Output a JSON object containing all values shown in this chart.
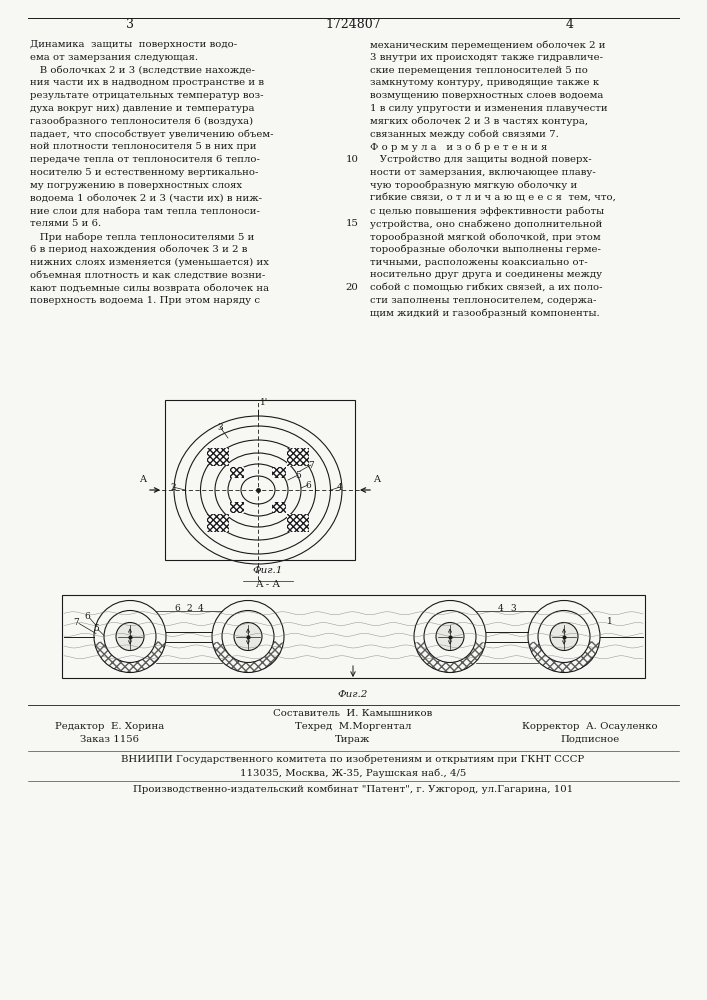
{
  "page_number_left": "3",
  "patent_number": "1724807",
  "page_number_right": "4",
  "background_color": "#f7f7f3",
  "text_color": "#1a1a1a",
  "left_col_lines": [
    "Динамика  защиты  поверхности водо-",
    "ема от замерзания следующая.",
    "   В оболочках 2 и 3 (вследствие нахожде-",
    "ния части их в надводном пространстве и в",
    "результате отрицательных температур воз-",
    "духа вокруг них) давление и температура",
    "газообразного теплоносителя 6 (воздуха)",
    "падает, что способствует увеличению объем-",
    "ной плотности теплоносителя 5 в них при",
    "передаче тепла от теплоносителя 6 тепло-",
    "носителю 5 и естественному вертикально-",
    "му погружению в поверхностных слоях",
    "водоема 1 оболочек 2 и 3 (части их) в ниж-",
    "ние слои для набора там тепла теплоноси-",
    "телями 5 и 6.",
    "   При наборе тепла теплоносителями 5 и",
    "6 в период нахождения оболочек 3 и 2 в",
    "нижних слоях изменяется (уменьшается) их",
    "объемная плотность и как следствие возни-",
    "кают подъемные силы возврата оболочек на",
    "поверхность водоема 1. При этом наряду с"
  ],
  "right_col_lines": [
    "механическим перемещением оболочек 2 и",
    "3 внутри их происходят также гидравличе-",
    "ские перемещения теплоносителей 5 по",
    "замкнутому контуру, приводящие также к",
    "возмущению поверхностных слоев водоема",
    "1 в силу упругости и изменения плавучести",
    "мягких оболочек 2 и 3 в частях контура,",
    "связанных между собой связями 7.",
    "Ф о р м у л а   и з о б р е т е н и я",
    "   Устройство для защиты водной поверх-",
    "ности от замерзания, включающее плаву-",
    "чую торообразную мягкую оболочку и",
    "гибкие связи, о т л и ч а ю щ е е с я  тем, что,",
    "с целью повышения эффективности работы",
    "устройства, оно снабжено дополнительной",
    "торообразной мягкой оболочкой, при этом",
    "торообразные оболочки выполнены герме-",
    "тичными, расположены коаксиально от-",
    "носительно друг друга и соединены между",
    "собой с помощью гибких связей, а их поло-",
    "сти заполнены теплоносителем, содержа-",
    "щим жидкий и газообразный компоненты."
  ],
  "line_numbers_rows": [
    9,
    14,
    19
  ],
  "line_numbers_vals": [
    "10",
    "15",
    "20"
  ],
  "fig1_caption": "Фиг.1",
  "fig2_caption": "Фиг.2",
  "aa_label": "A - A",
  "bottom_sostavitel": "Составитель  И. Камышников",
  "bottom_editor": "Редактор  Е. Хорина",
  "bottom_techred": "Техред  М.Моргентал",
  "bottom_corrector": "Корректор  А. Осауленко",
  "bottom_zakaz": "Заказ 1156",
  "bottom_tirazh": "Тираж",
  "bottom_podpisnoe": "Подписное",
  "bottom_vniipі": "ВНИИПИ Государственного комитета по изобретениям и открытиям при ГКНТ СССР",
  "bottom_address": "113035, Москва, Ж-35, Раушская наб., 4/5",
  "bottom_izdatel": "Производственно-издательский комбинат \"Патент\", г. Ужгород, ул.Гагарина, 101"
}
